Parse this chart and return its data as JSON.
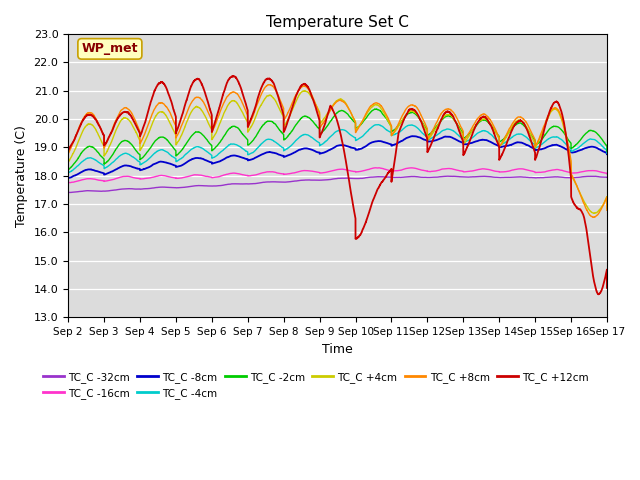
{
  "title": "Temperature Set C",
  "xlabel": "Time",
  "ylabel": "Temperature (C)",
  "ylim": [
    13.0,
    23.0
  ],
  "yticks": [
    13.0,
    14.0,
    15.0,
    16.0,
    17.0,
    18.0,
    19.0,
    20.0,
    21.0,
    22.0,
    23.0
  ],
  "bg_color": "#dcdcdc",
  "annotation_text": "WP_met",
  "annotation_bg": "#ffffc0",
  "annotation_border": "#c8a000",
  "series_colors": {
    "TC_C -32cm": "#9933cc",
    "TC_C -16cm": "#ff33cc",
    "TC_C -8cm": "#0000cc",
    "TC_C -4cm": "#00cccc",
    "TC_C -2cm": "#00cc00",
    "TC_C +4cm": "#cccc00",
    "TC_C +8cm": "#ff8800",
    "TC_C +12cm": "#cc0000"
  },
  "x_start": 0,
  "x_end": 15,
  "xtick_labels": [
    "Sep 2",
    "Sep 3",
    "Sep 4",
    "Sep 5",
    "Sep 6",
    "Sep 7",
    "Sep 8",
    "Sep 9",
    "Sep 10",
    "Sep 11",
    "Sep 12",
    "Sep 13",
    "Sep 14",
    "Sep 15",
    "Sep 16",
    "Sep 17"
  ],
  "xtick_positions": [
    0,
    1,
    2,
    3,
    4,
    5,
    6,
    7,
    8,
    9,
    10,
    11,
    12,
    13,
    14,
    15
  ]
}
